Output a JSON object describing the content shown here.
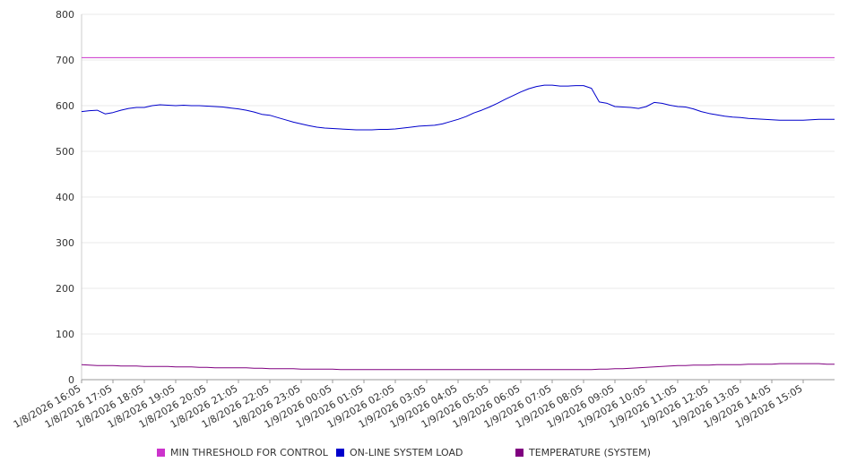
{
  "chart_data": {
    "type": "line",
    "title": "",
    "xlabel": "",
    "ylabel": "",
    "ylim": [
      0,
      800
    ],
    "y_ticks": [
      0,
      100,
      200,
      300,
      400,
      500,
      600,
      700,
      800
    ],
    "x_tick_labels": [
      "1/8/2026 16:05",
      "1/8/2026 17:05",
      "1/8/2026 18:05",
      "1/8/2026 19:05",
      "1/8/2026 20:05",
      "1/8/2026 21:05",
      "1/8/2026 22:05",
      "1/8/2026 23:05",
      "1/9/2026 00:05",
      "1/9/2026 01:05",
      "1/9/2026 02:05",
      "1/9/2026 03:05",
      "1/9/2026 04:05",
      "1/9/2026 05:05",
      "1/9/2026 06:05",
      "1/9/2026 07:05",
      "1/9/2026 08:05",
      "1/9/2026 09:05",
      "1/9/2026 10:05",
      "1/9/2026 11:05",
      "1/9/2026 12:05",
      "1/9/2026 13:05",
      "1/9/2026 14:05",
      "1/9/2026 15:05"
    ],
    "x_hours": [
      0,
      0.25,
      0.5,
      0.75,
      1,
      1.25,
      1.5,
      1.75,
      2,
      2.25,
      2.5,
      2.75,
      3,
      3.25,
      3.5,
      3.75,
      4,
      4.25,
      4.5,
      4.75,
      5,
      5.25,
      5.5,
      5.75,
      6,
      6.25,
      6.5,
      6.75,
      7,
      7.25,
      7.5,
      7.75,
      8,
      8.25,
      8.5,
      8.75,
      9,
      9.25,
      9.5,
      9.75,
      10,
      10.25,
      10.5,
      10.75,
      11,
      11.25,
      11.5,
      11.75,
      12,
      12.25,
      12.5,
      12.75,
      13,
      13.25,
      13.5,
      13.75,
      14,
      14.25,
      14.5,
      14.75,
      15,
      15.25,
      15.5,
      15.75,
      16,
      16.25,
      16.5,
      16.75,
      17,
      17.25,
      17.5,
      17.75,
      18,
      18.25,
      18.5,
      18.75,
      19,
      19.25,
      19.5,
      19.75,
      20,
      20.25,
      20.5,
      20.75,
      21,
      21.25,
      21.5,
      21.75,
      22,
      22.25,
      22.5,
      22.75,
      23,
      23.25,
      23.5,
      23.75,
      24
    ],
    "series": [
      {
        "name": "MIN THRESHOLD FOR CONTROL",
        "color": "#cc33cc",
        "values": [
          705,
          705,
          705,
          705,
          705,
          705,
          705,
          705,
          705,
          705,
          705,
          705,
          705,
          705,
          705,
          705,
          705,
          705,
          705,
          705,
          705,
          705,
          705,
          705,
          705,
          705,
          705,
          705,
          705,
          705,
          705,
          705,
          705,
          705,
          705,
          705,
          705,
          705,
          705,
          705,
          705,
          705,
          705,
          705,
          705,
          705,
          705,
          705,
          705,
          705,
          705,
          705,
          705,
          705,
          705,
          705,
          705,
          705,
          705,
          705,
          705,
          705,
          705,
          705,
          705,
          705,
          705,
          705,
          705,
          705,
          705,
          705,
          705,
          705,
          705,
          705,
          705,
          705,
          705,
          705,
          705,
          705,
          705,
          705,
          705,
          705,
          705,
          705,
          705,
          705,
          705,
          705,
          705,
          705,
          705,
          705,
          705
        ]
      },
      {
        "name": "ON-LINE SYSTEM LOAD",
        "color": "#0000cc",
        "values": [
          587,
          589,
          590,
          582,
          585,
          590,
          594,
          596,
          596,
          600,
          602,
          601,
          600,
          601,
          600,
          600,
          599,
          598,
          597,
          595,
          593,
          590,
          586,
          581,
          579,
          574,
          569,
          564,
          560,
          556,
          553,
          551,
          550,
          549,
          548,
          547,
          547,
          547,
          548,
          548,
          549,
          551,
          553,
          555,
          556,
          557,
          560,
          565,
          570,
          576,
          584,
          590,
          597,
          605,
          614,
          622,
          630,
          637,
          642,
          645,
          645,
          643,
          643,
          644,
          644,
          638,
          608,
          605,
          598,
          597,
          596,
          594,
          598,
          607,
          605,
          601,
          598,
          597,
          593,
          587,
          583,
          580,
          577,
          575,
          574,
          572,
          571,
          570,
          569,
          568,
          568,
          568,
          568,
          569,
          570,
          570,
          570
        ]
      },
      {
        "name": "TEMPERATURE (SYSTEM)",
        "color": "#800080",
        "values": [
          33,
          32,
          31,
          31,
          31,
          30,
          30,
          30,
          29,
          29,
          29,
          29,
          28,
          28,
          28,
          27,
          27,
          26,
          26,
          26,
          26,
          26,
          25,
          25,
          24,
          24,
          24,
          24,
          23,
          23,
          23,
          23,
          23,
          22,
          22,
          22,
          22,
          22,
          22,
          22,
          22,
          22,
          22,
          22,
          22,
          22,
          22,
          22,
          22,
          22,
          22,
          22,
          22,
          22,
          22,
          22,
          22,
          22,
          22,
          22,
          22,
          22,
          22,
          22,
          22,
          22,
          23,
          23,
          24,
          24,
          25,
          26,
          27,
          28,
          29,
          30,
          31,
          31,
          32,
          32,
          32,
          33,
          33,
          33,
          33,
          34,
          34,
          34,
          34,
          35,
          35,
          35,
          35,
          35,
          35,
          34,
          34
        ]
      }
    ],
    "grid": true,
    "legend_position": "bottom"
  }
}
